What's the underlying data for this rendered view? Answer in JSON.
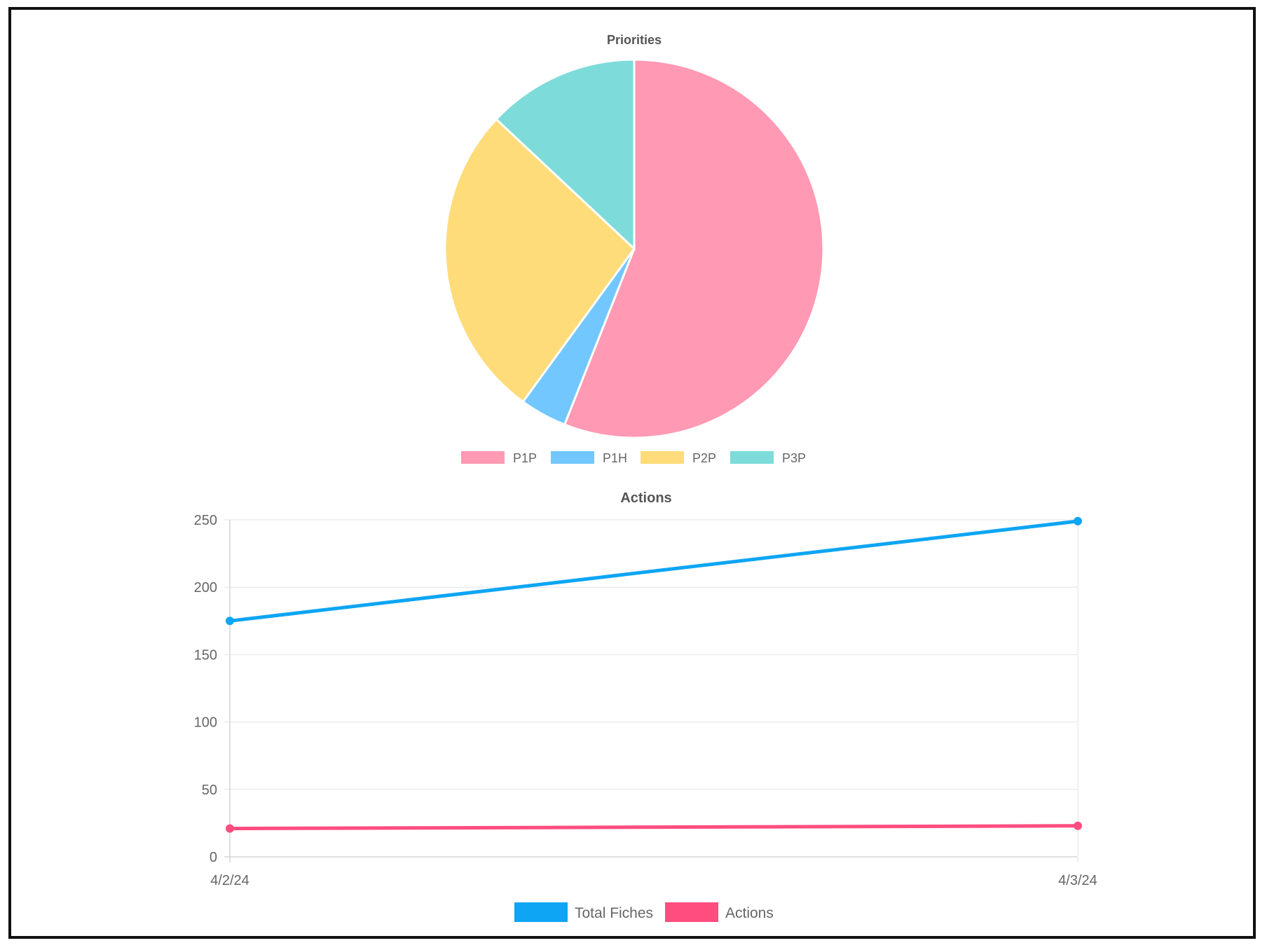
{
  "chart_data": [
    {
      "type": "pie",
      "title": "Priorities",
      "legend_position": "bottom",
      "slices": [
        {
          "label": "P1P",
          "value": 56,
          "color": "#ff99b4"
        },
        {
          "label": "P1H",
          "value": 4,
          "color": "#72c7ff"
        },
        {
          "label": "P2P",
          "value": 27,
          "color": "#ffdc7a"
        },
        {
          "label": "P3P",
          "value": 13,
          "color": "#7ddcda"
        }
      ]
    },
    {
      "type": "line",
      "title": "Actions",
      "x": [
        "4/2/24",
        "4/3/24"
      ],
      "ylim": [
        0,
        250
      ],
      "yticks": [
        0,
        50,
        100,
        150,
        200,
        250
      ],
      "grid": true,
      "legend_position": "bottom",
      "series": [
        {
          "name": "Total Fiches",
          "values": [
            175,
            249
          ],
          "color": "#0ea5f4"
        },
        {
          "name": "Actions",
          "values": [
            21,
            23
          ],
          "color": "#ff4d80"
        }
      ]
    }
  ]
}
